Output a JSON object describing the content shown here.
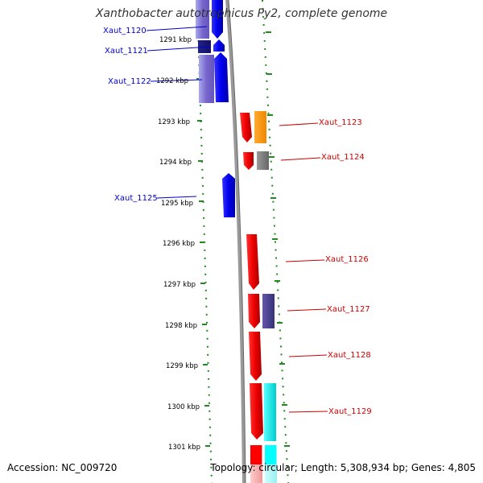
{
  "title": "Xanthobacter autotrophicus Py2, complete genome",
  "footer": {
    "accession": "Accession: NC_009720",
    "summary": "Topology: circular; Length: 5,308,934 bp; Genes: 4,805"
  },
  "colors": {
    "background": "#ffffff",
    "tick": "#228822",
    "backbone": "#888888",
    "leftward_label": "#0000cc",
    "rightward_label": "#cc0000"
  },
  "scale": {
    "unit": "kbp",
    "ticks": [
      "1291 kbp",
      "1292 kbp",
      "1293 kbp",
      "1294 kbp",
      "1295 kbp",
      "1296 kbp",
      "1297 kbp",
      "1298 kbp",
      "1299 kbp",
      "1300 kbp",
      "1301 kbp"
    ]
  },
  "genes": [
    {
      "label": "Xaut_1120",
      "strand": "-"
    },
    {
      "label": "Xaut_1121",
      "strand": "-"
    },
    {
      "label": "Xaut_1122",
      "strand": "-"
    },
    {
      "label": "Xaut_1123",
      "strand": "+"
    },
    {
      "label": "Xaut_1124",
      "strand": "+"
    },
    {
      "label": "Xaut_1125",
      "strand": "-"
    },
    {
      "label": "Xaut_1126",
      "strand": "+"
    },
    {
      "label": "Xaut_1127",
      "strand": "+"
    },
    {
      "label": "Xaut_1128",
      "strand": "+"
    },
    {
      "label": "Xaut_1129",
      "strand": "+"
    }
  ]
}
